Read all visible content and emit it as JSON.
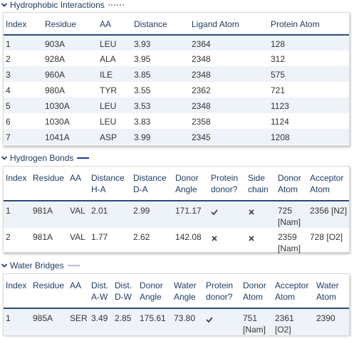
{
  "sections": {
    "hydrophobic": {
      "title": "Hydrophobic Interactions",
      "legend_color": "#7a7a7a",
      "headers": [
        "Index",
        "Residue",
        "AA",
        "Distance",
        "Ligand Atom",
        "Protein Atom"
      ],
      "rows": [
        [
          "1",
          "903A",
          "LEU",
          "3.93",
          "2364",
          "128"
        ],
        [
          "2",
          "928A",
          "ALA",
          "3.95",
          "2348",
          "312"
        ],
        [
          "3",
          "960A",
          "ILE",
          "3.85",
          "2348",
          "575"
        ],
        [
          "4",
          "980A",
          "TYR",
          "3.55",
          "2362",
          "721"
        ],
        [
          "5",
          "1030A",
          "LEU",
          "3.53",
          "2348",
          "1123"
        ],
        [
          "6",
          "1030A",
          "LEU",
          "3.83",
          "2358",
          "1124"
        ],
        [
          "7",
          "1041A",
          "ASP",
          "3.99",
          "2345",
          "1208"
        ]
      ]
    },
    "hbonds": {
      "title": "Hydrogen Bonds",
      "legend_color": "#1f3a93",
      "headers": [
        [
          "Index"
        ],
        [
          "Residue"
        ],
        [
          "AA"
        ],
        [
          "Distance",
          "H-A"
        ],
        [
          "Distance",
          "D-A"
        ],
        [
          "Donor",
          "Angle"
        ],
        [
          "Protein",
          "donor?"
        ],
        [
          "Side",
          "chain"
        ],
        [
          "Donor",
          "Atom"
        ],
        [
          "Acceptor",
          "Atom"
        ]
      ],
      "rows": [
        {
          "index": "1",
          "residue": "981A",
          "aa": "VAL",
          "dist_ha": "2.01",
          "dist_da": "2.99",
          "angle": "171.17",
          "protein_donor": "check-icon",
          "side_chain": "cross-icon",
          "donor_atom": [
            "725",
            "[Nam]"
          ],
          "acceptor_atom": "2356 [N2]"
        },
        {
          "index": "2",
          "residue": "981A",
          "aa": "VAL",
          "dist_ha": "1.77",
          "dist_da": "2.62",
          "angle": "142.08",
          "protein_donor": "cross-icon",
          "side_chain": "cross-icon",
          "donor_atom": [
            "2359",
            "[Nam]"
          ],
          "acceptor_atom": "728 [O2]"
        }
      ]
    },
    "water": {
      "title": "Water Bridges",
      "legend_color": "#b9b9e3",
      "headers": [
        [
          "Index"
        ],
        [
          "Residue"
        ],
        [
          "AA"
        ],
        [
          "Dist.",
          "A-W"
        ],
        [
          "Dist.",
          "D-W"
        ],
        [
          "Donor",
          "Angle"
        ],
        [
          "Water",
          "Angle"
        ],
        [
          "Protein",
          "donor?"
        ],
        [
          "Donor",
          "Atom"
        ],
        [
          "Acceptor",
          "Atom"
        ],
        [
          "Water",
          "Atom"
        ]
      ],
      "rows": [
        {
          "index": "1",
          "residue": "985A",
          "aa": "SER",
          "dist_aw": "3.49",
          "dist_dw": "2.85",
          "donor_angle": "175.61",
          "water_angle": "73.80",
          "protein_donor": "check-icon",
          "donor_atom": [
            "751",
            "[Nam]"
          ],
          "acceptor_atom": [
            "2361",
            "[O2]"
          ],
          "water_atom": "2390"
        }
      ]
    }
  }
}
